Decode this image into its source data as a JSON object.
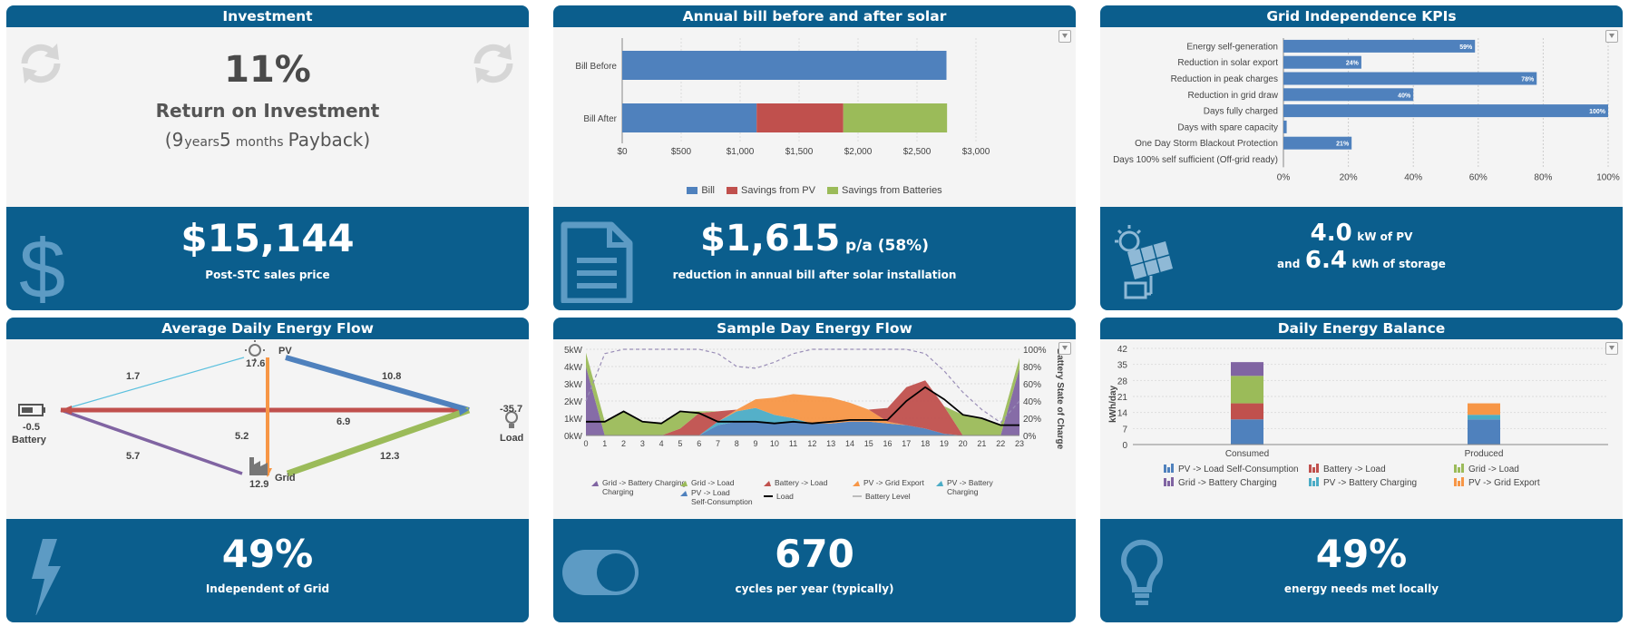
{
  "colors": {
    "header": "#0b5e8d",
    "blue": "#4f81bd",
    "red": "#c0504d",
    "green": "#9bbb59",
    "purple": "#8064a2",
    "cyan": "#4bacc6",
    "orange": "#f79646"
  },
  "investment": {
    "title": "Investment",
    "roi_value": "11%",
    "roi_label": "Return on Investment",
    "payback_open": "(",
    "payback_years_num": "9",
    "payback_years_unit": "years",
    "payback_months_num": "5",
    "payback_months_unit": "months",
    "payback_tail": "Payback)",
    "price": "$15,144",
    "price_label": "Post-STC sales price"
  },
  "bill": {
    "title": "Annual bill before and after solar",
    "saving": "$1,615",
    "saving_suffix": "p/a (58%)",
    "saving_label": "reduction in annual bill after solar installation"
  },
  "kpi": {
    "title": "Grid Independence KPIs",
    "pv_kw": "4.0",
    "pv_label": "kW of PV",
    "and": "and",
    "storage_kwh": "6.4",
    "storage_label": "kWh of storage"
  },
  "flow": {
    "title": "Average Daily Energy Flow",
    "pv_label": "PV",
    "pv_value": "17.6",
    "battery_label": "Battery",
    "battery_value": "-0.5",
    "load_label": "Load",
    "load_value": "-35.7",
    "grid_label": "Grid",
    "grid_value": "12.9",
    "edge_pv_battery": "1.7",
    "edge_pv_load": "10.8",
    "edge_battery_load": "6.9",
    "edge_pv_grid": "5.2",
    "edge_grid_battery": "5.7",
    "edge_grid_load": "12.3",
    "independence": "49%",
    "independence_label": "Independent of Grid"
  },
  "sample": {
    "title": "Sample Day Energy Flow",
    "cycles": "670",
    "cycles_label": "cycles per year (typically)"
  },
  "balance": {
    "title": "Daily Energy Balance",
    "local": "49%",
    "local_label": "energy needs met locally"
  },
  "chart_data": [
    {
      "id": "bill",
      "type": "bar",
      "orientation": "horizontal",
      "stacked": true,
      "categories": [
        "Bill Before",
        "Bill After"
      ],
      "series": [
        {
          "name": "Bill",
          "values": [
            2750,
            1140
          ]
        },
        {
          "name": "Savings from PV",
          "values": [
            0,
            735
          ]
        },
        {
          "name": "Savings from Batteries",
          "values": [
            0,
            880
          ]
        }
      ],
      "xlim": [
        0,
        3000
      ],
      "xticks": [
        "$0",
        "$500",
        "$1,000",
        "$1,500",
        "$2,000",
        "$2,500",
        "$3,000"
      ],
      "legend": "bottom"
    },
    {
      "id": "kpi",
      "type": "bar",
      "orientation": "horizontal",
      "categories": [
        "Energy self-generation",
        "Reduction in solar export",
        "Reduction in peak charges",
        "Reduction in grid draw",
        "Days fully charged",
        "Days with spare capacity",
        "One Day Storm Blackout Protection",
        "Days 100% self sufficient (Off-grid ready)"
      ],
      "values": [
        59,
        24,
        78,
        40,
        100,
        1,
        21,
        0
      ],
      "data_labels": [
        "59%",
        "24%",
        "78%",
        "40%",
        "100%",
        "",
        "21%",
        ""
      ],
      "xlim": [
        0,
        100
      ],
      "xticks": [
        "0%",
        "20%",
        "40%",
        "60%",
        "80%",
        "100%"
      ]
    },
    {
      "id": "sample",
      "type": "area",
      "x": [
        0,
        1,
        2,
        3,
        4,
        5,
        6,
        7,
        8,
        9,
        10,
        11,
        12,
        13,
        14,
        15,
        16,
        17,
        18,
        19,
        20,
        21,
        22,
        23
      ],
      "ylim": [
        0,
        5
      ],
      "yticks": [
        "0kW",
        "1kW",
        "2kW",
        "3kW",
        "4kW",
        "5kW"
      ],
      "y2ticks": [
        "0%",
        "20%",
        "40%",
        "60%",
        "80%",
        "100%"
      ],
      "y2label": "Battery State of Charge",
      "legend": "bottom",
      "series": [
        {
          "name": "Grid -> Battery Charging",
          "values": [
            4.0,
            0,
            0,
            0,
            0,
            0,
            0,
            0,
            0,
            0,
            0,
            0,
            0,
            0,
            0,
            0,
            0,
            0,
            0,
            0,
            0,
            0,
            0,
            3.9
          ]
        },
        {
          "name": "Grid -> Load",
          "values": [
            0.8,
            0.8,
            1.4,
            0.8,
            0.7,
            1.0,
            0.1,
            0,
            0,
            0,
            0,
            0,
            0,
            0,
            0,
            0,
            0,
            0,
            0,
            0,
            1.2,
            1.0,
            0.6,
            0.6
          ]
        },
        {
          "name": "Battery -> Load",
          "values": [
            0,
            0,
            0,
            0,
            0,
            0.4,
            1.3,
            0.6,
            0,
            0,
            0,
            0,
            0,
            0,
            0,
            0,
            0.8,
            2.2,
            2.8,
            1.6,
            0,
            0,
            0,
            0
          ]
        },
        {
          "name": "PV -> Grid Export",
          "values": [
            0,
            0,
            0,
            0,
            0,
            0,
            0,
            0,
            0.1,
            0.5,
            1.0,
            1.4,
            1.6,
            1.5,
            1.1,
            0.7,
            0.1,
            0,
            0,
            0,
            0,
            0,
            0,
            0
          ]
        },
        {
          "name": "PV -> Load Self-Consumption",
          "values": [
            0,
            0,
            0,
            0,
            0,
            0,
            0,
            0.6,
            0.8,
            0.8,
            0.7,
            0.8,
            0.7,
            0.7,
            0.8,
            0.8,
            0.7,
            0.6,
            0.4,
            0.1,
            0,
            0,
            0,
            0
          ]
        },
        {
          "name": "PV -> Battery Charging",
          "values": [
            0,
            0,
            0,
            0,
            0,
            0,
            0,
            0.2,
            0.6,
            0.8,
            0.5,
            0.2,
            0,
            0,
            0,
            0,
            0,
            0,
            0,
            0,
            0,
            0,
            0,
            0
          ]
        },
        {
          "name": "Load",
          "values": [
            0.8,
            0.8,
            1.4,
            0.8,
            0.7,
            1.4,
            1.3,
            0.8,
            0.8,
            0.8,
            0.7,
            0.8,
            0.7,
            0.8,
            0.9,
            0.9,
            0.9,
            2.0,
            2.8,
            2.1,
            1.2,
            1.0,
            0.6,
            0.6
          ]
        },
        {
          "name": "Battery Level",
          "axis": "right",
          "values": [
            40,
            95,
            100,
            100,
            100,
            100,
            100,
            95,
            80,
            78,
            85,
            95,
            100,
            100,
            100,
            100,
            100,
            100,
            95,
            75,
            50,
            30,
            15,
            40
          ]
        }
      ]
    },
    {
      "id": "balance",
      "type": "bar",
      "stacked": true,
      "categories": [
        "Consumed",
        "Produced"
      ],
      "ylim": [
        0,
        42
      ],
      "yticks": [
        "0",
        "7",
        "14",
        "21",
        "28",
        "35",
        "42"
      ],
      "ylabel": "kWh/day",
      "legend": "bottom",
      "series": [
        {
          "name": "PV -> Load Self-Consumption",
          "values": [
            11,
            11
          ]
        },
        {
          "name": "Battery -> Load",
          "values": [
            7,
            0
          ]
        },
        {
          "name": "Grid -> Load",
          "values": [
            12,
            0
          ]
        },
        {
          "name": "Grid -> Battery Charging",
          "values": [
            6,
            0
          ]
        },
        {
          "name": "PV -> Battery Charging",
          "values": [
            0,
            2
          ]
        },
        {
          "name": "PV -> Grid Export",
          "values": [
            0,
            5
          ]
        }
      ]
    }
  ]
}
